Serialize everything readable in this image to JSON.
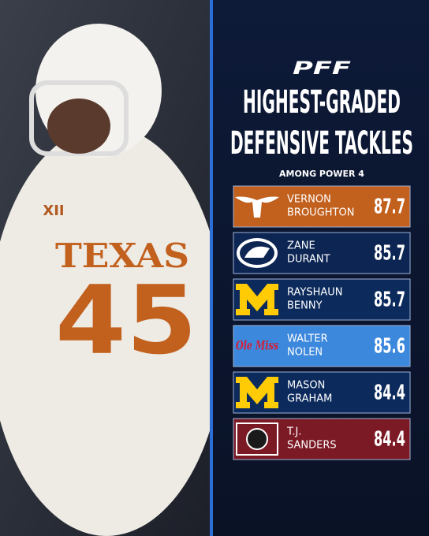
{
  "photo": {
    "jersey_conference": "XII",
    "jersey_school": "TEXAS",
    "jersey_number": "45"
  },
  "header": {
    "logo": "PFF",
    "title_lines": [
      "HIGHEST-GRADED",
      "DEFENSIVE TACKLES"
    ],
    "subtitle": "AMONG POWER 4"
  },
  "rows": [
    {
      "name_lines": [
        "VERNON",
        "BROUGHTON"
      ],
      "grade": 87.7
    },
    {
      "name_lines": [
        "ZANE",
        "DURANT"
      ],
      "grade": 85.7
    },
    {
      "name_lines": [
        "RAYSHAUN",
        "BENNY"
      ],
      "grade": 85.7
    },
    {
      "name_lines": [
        "WALTER",
        "NOLEN"
      ],
      "grade": 85.6,
      "logo": "Ole Miss"
    },
    {
      "name_lines": [
        "MASON",
        "GRAHAM"
      ],
      "grade": 84.4
    },
    {
      "name_lines": [
        "T.J.",
        "SANDERS"
      ],
      "grade": 84.4
    }
  ]
}
